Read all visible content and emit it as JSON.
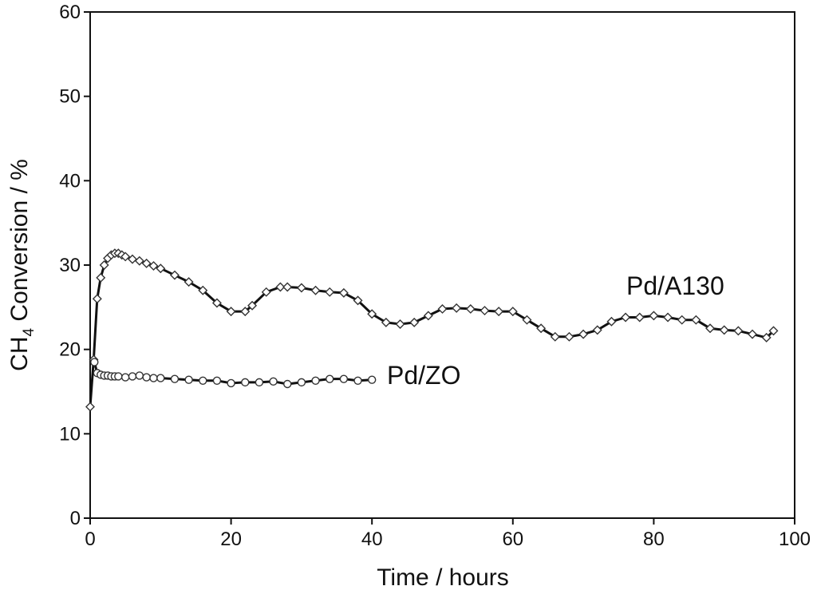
{
  "chart_data": {
    "type": "line",
    "title": "",
    "xlabel": "Time / hours",
    "ylabel_main": "CH",
    "ylabel_sub": "4",
    "ylabel_rest": " Conversion / %",
    "xlim": [
      0,
      100
    ],
    "ylim": [
      0,
      60
    ],
    "xticks": [
      0,
      20,
      40,
      60,
      80,
      100
    ],
    "yticks": [
      0,
      10,
      20,
      30,
      40,
      50,
      60
    ],
    "grid": false,
    "series": [
      {
        "name": "Pd/A130",
        "marker": "diamond",
        "x": [
          0,
          0.5,
          1,
          1.5,
          2,
          2.5,
          3,
          3.5,
          4,
          4.5,
          5,
          6,
          7,
          8,
          9,
          10,
          12,
          14,
          16,
          18,
          20,
          22,
          23,
          25,
          27,
          28,
          30,
          32,
          34,
          36,
          38,
          40,
          42,
          44,
          46,
          48,
          50,
          52,
          54,
          56,
          58,
          60,
          62,
          64,
          66,
          68,
          70,
          72,
          74,
          76,
          78,
          80,
          82,
          84,
          86,
          88,
          90,
          92,
          94,
          96,
          97
        ],
        "y": [
          13.2,
          18.8,
          26,
          28.5,
          30,
          30.8,
          31.2,
          31.4,
          31.4,
          31.2,
          31,
          30.7,
          30.5,
          30.2,
          29.9,
          29.6,
          28.8,
          28,
          27,
          25.5,
          24.5,
          24.5,
          25.2,
          26.8,
          27.4,
          27.4,
          27.3,
          27,
          26.8,
          26.7,
          25.8,
          24.2,
          23.2,
          23,
          23.2,
          24,
          24.8,
          24.9,
          24.8,
          24.6,
          24.5,
          24.5,
          23.5,
          22.5,
          21.5,
          21.5,
          21.8,
          22.3,
          23.3,
          23.8,
          23.8,
          24,
          23.8,
          23.5,
          23.5,
          22.5,
          22.3,
          22.2,
          21.8,
          21.4,
          22.2
        ]
      },
      {
        "name": "Pd/ZO",
        "marker": "circle",
        "x": [
          0.6,
          1,
          1.5,
          2,
          2.5,
          3,
          3.5,
          4,
          5,
          6,
          7,
          8,
          9,
          10,
          12,
          14,
          16,
          18,
          20,
          22,
          24,
          26,
          28,
          30,
          32,
          34,
          36,
          38,
          40
        ],
        "y": [
          18.5,
          17.2,
          17,
          16.9,
          16.9,
          16.8,
          16.8,
          16.8,
          16.7,
          16.8,
          16.9,
          16.7,
          16.6,
          16.6,
          16.5,
          16.4,
          16.3,
          16.3,
          16.0,
          16.1,
          16.1,
          16.2,
          15.9,
          16.1,
          16.3,
          16.5,
          16.5,
          16.3,
          16.4
        ]
      }
    ]
  }
}
